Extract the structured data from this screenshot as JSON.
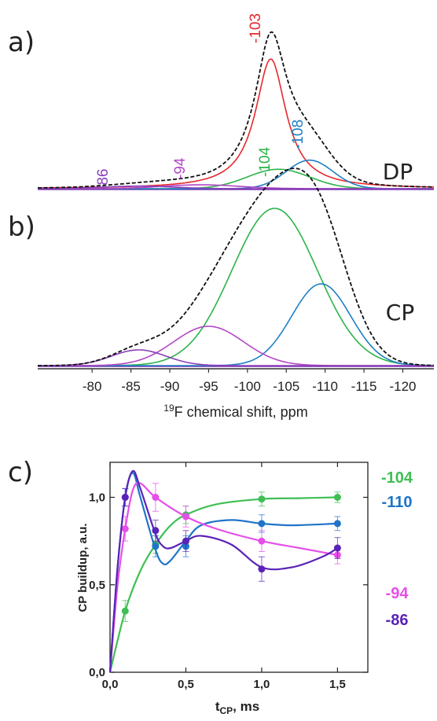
{
  "chart_data": [
    {
      "type": "line",
      "panel_label": "a)",
      "spectrum_label": "DP",
      "xlim": [
        -73,
        -124
      ],
      "components": [
        {
          "peak": "-103",
          "center": -103,
          "height": 1.0,
          "width": 2.4,
          "color": "#e8272b"
        },
        {
          "peak": "-104",
          "center": -104,
          "height": 0.15,
          "width": 4.0,
          "color": "#2db34a"
        },
        {
          "peak": "-108",
          "center": -108,
          "height": 0.22,
          "width": 3.0,
          "color": "#1f7fc4"
        },
        {
          "peak": "-94",
          "center": -94,
          "height": 0.03,
          "width": 5.0,
          "color": "#b446c8"
        },
        {
          "peak": "-86",
          "center": -86,
          "height": 0.02,
          "width": 4.5,
          "color": "#8a3fb8"
        }
      ]
    },
    {
      "type": "line",
      "panel_label": "b)",
      "spectrum_label": "CP",
      "xlim": [
        -73,
        -124
      ],
      "xlabel_sup": "19",
      "xlabel": "F chemical shift, ppm",
      "xticks": [
        -80,
        -85,
        -90,
        -95,
        -100,
        -105,
        -110,
        -115,
        -120
      ],
      "xtick_labels": [
        "-80",
        "-85",
        "-90",
        "-95",
        "-100",
        "-105",
        "-110",
        "-115",
        "-120"
      ],
      "components": [
        {
          "peak": "-104",
          "center": -103.5,
          "height": 1.0,
          "width": 5.5,
          "color": "#2db34a"
        },
        {
          "peak": "-110",
          "center": -109.5,
          "height": 0.52,
          "width": 3.8,
          "color": "#1f7fc4"
        },
        {
          "peak": "-94",
          "center": -95,
          "height": 0.25,
          "width": 4.5,
          "color": "#b446c8"
        },
        {
          "peak": "-86",
          "center": -86,
          "height": 0.1,
          "width": 3.5,
          "color": "#8a3fb8"
        }
      ]
    },
    {
      "type": "line",
      "panel_label": "c)",
      "xlabel_main": "t",
      "xlabel_sub": "CP",
      "xlabel_tail": ", ms",
      "ylabel": "CP buildup, a.u.",
      "xlim": [
        0,
        1.7
      ],
      "ylim": [
        0,
        1.2
      ],
      "xticks": [
        0,
        0.5,
        1.0,
        1.5
      ],
      "xtick_labels": [
        "0,0",
        "0,5",
        "1,0",
        "1,5"
      ],
      "yticks": [
        0,
        0.5,
        1.0
      ],
      "ytick_labels": [
        "0,0",
        "0,5",
        "1,0"
      ],
      "series": [
        {
          "name": "-104",
          "color": "#3fbf55",
          "x": [
            0.1,
            0.3,
            0.5,
            1.0,
            1.5
          ],
          "y": [
            0.35,
            0.73,
            0.9,
            0.99,
            1.0
          ],
          "err": [
            0.06,
            0.05,
            0.05,
            0.04,
            0.03
          ],
          "curve_x": [
            0,
            0.1,
            0.2,
            0.3,
            0.4,
            0.5,
            0.7,
            1.0,
            1.25,
            1.5
          ],
          "curve_y": [
            0,
            0.35,
            0.58,
            0.73,
            0.84,
            0.9,
            0.96,
            0.99,
            0.995,
            1.0
          ]
        },
        {
          "name": "-110",
          "color": "#1f74c8",
          "x": [
            0.1,
            0.3,
            0.5,
            1.0,
            1.5
          ],
          "y": [
            1.0,
            0.72,
            0.72,
            0.85,
            0.85
          ],
          "err": [
            0.05,
            0.06,
            0.06,
            0.05,
            0.04
          ],
          "curve_x": [
            0,
            0.05,
            0.1,
            0.15,
            0.2,
            0.3,
            0.35,
            0.4,
            0.5,
            0.6,
            0.8,
            1.0,
            1.2,
            1.5
          ],
          "curve_y": [
            0,
            0.6,
            1.0,
            1.14,
            1.0,
            0.7,
            0.62,
            0.64,
            0.75,
            0.84,
            0.87,
            0.85,
            0.84,
            0.85
          ]
        },
        {
          "name": "-94",
          "color": "#e64fe8",
          "x": [
            0.1,
            0.3,
            0.5,
            1.0,
            1.5
          ],
          "y": [
            0.82,
            1.0,
            0.89,
            0.75,
            0.67
          ],
          "err": [
            0.07,
            0.08,
            0.06,
            0.06,
            0.05
          ],
          "curve_x": [
            0,
            0.05,
            0.1,
            0.15,
            0.2,
            0.3,
            0.5,
            0.7,
            1.0,
            1.25,
            1.5
          ],
          "curve_y": [
            0,
            0.5,
            0.82,
            1.04,
            1.08,
            1.0,
            0.89,
            0.82,
            0.75,
            0.71,
            0.67
          ]
        },
        {
          "name": "-86",
          "color": "#5a23b8",
          "x": [
            0.1,
            0.3,
            0.5,
            1.0,
            1.5
          ],
          "y": [
            1.0,
            0.81,
            0.75,
            0.59,
            0.71
          ],
          "err": [
            0.05,
            0.06,
            0.06,
            0.07,
            0.06
          ],
          "curve_x": [
            0,
            0.05,
            0.1,
            0.15,
            0.2,
            0.3,
            0.35,
            0.4,
            0.5,
            0.6,
            0.8,
            1.0,
            1.2,
            1.4,
            1.5
          ],
          "curve_y": [
            0,
            0.6,
            1.0,
            1.15,
            1.05,
            0.79,
            0.72,
            0.71,
            0.75,
            0.78,
            0.73,
            0.6,
            0.6,
            0.66,
            0.71
          ]
        }
      ]
    }
  ]
}
